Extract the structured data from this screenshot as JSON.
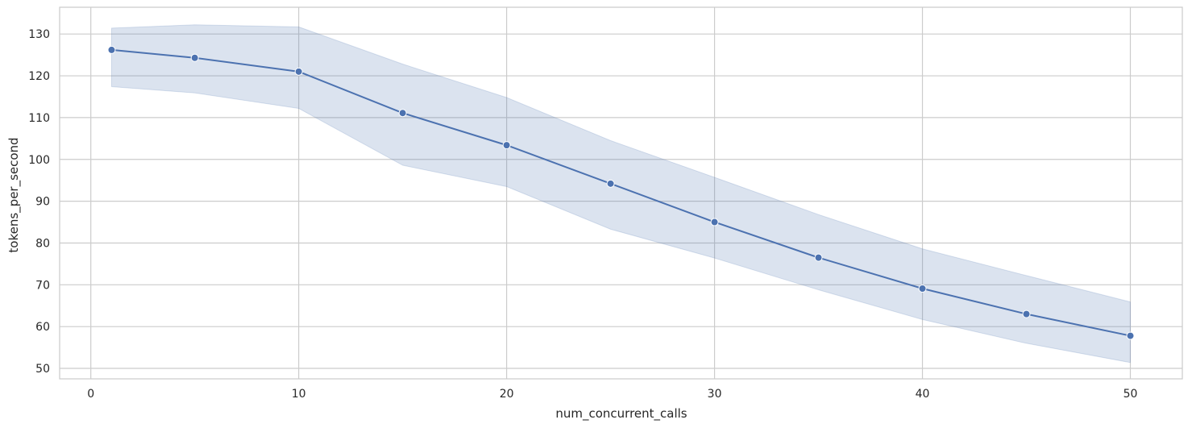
{
  "chart_data": {
    "type": "line",
    "title": "",
    "xlabel": "num_concurrent_calls",
    "ylabel": "tokens_per_second",
    "xlim": [
      -1.5,
      52.5
    ],
    "ylim": [
      47.5,
      136.4
    ],
    "xticks": [
      0,
      10,
      20,
      30,
      40,
      50
    ],
    "yticks": [
      50,
      60,
      70,
      80,
      90,
      100,
      110,
      120,
      130
    ],
    "grid": true,
    "legend": "none",
    "series": [
      {
        "x": [
          1,
          5,
          10,
          15,
          20,
          25,
          30,
          35,
          40,
          45,
          50
        ],
        "y": [
          126.2,
          124.3,
          121.0,
          111.1,
          103.4,
          94.2,
          85.0,
          76.5,
          69.1,
          63.0,
          57.8
        ],
        "ci_lower": [
          117.4,
          115.9,
          112.2,
          98.6,
          93.5,
          83.3,
          76.4,
          68.8,
          61.7,
          56.0,
          51.4
        ],
        "ci_upper": [
          131.4,
          132.2,
          131.7,
          122.8,
          114.8,
          104.5,
          95.7,
          86.8,
          78.6,
          72.2,
          65.9
        ],
        "color": "#4c72b0",
        "band_color": "#4c72b0",
        "marker": "circle"
      }
    ],
    "colors": {
      "grid": "#cccccc",
      "spine": "#cccccc",
      "background": "#ffffff"
    }
  }
}
